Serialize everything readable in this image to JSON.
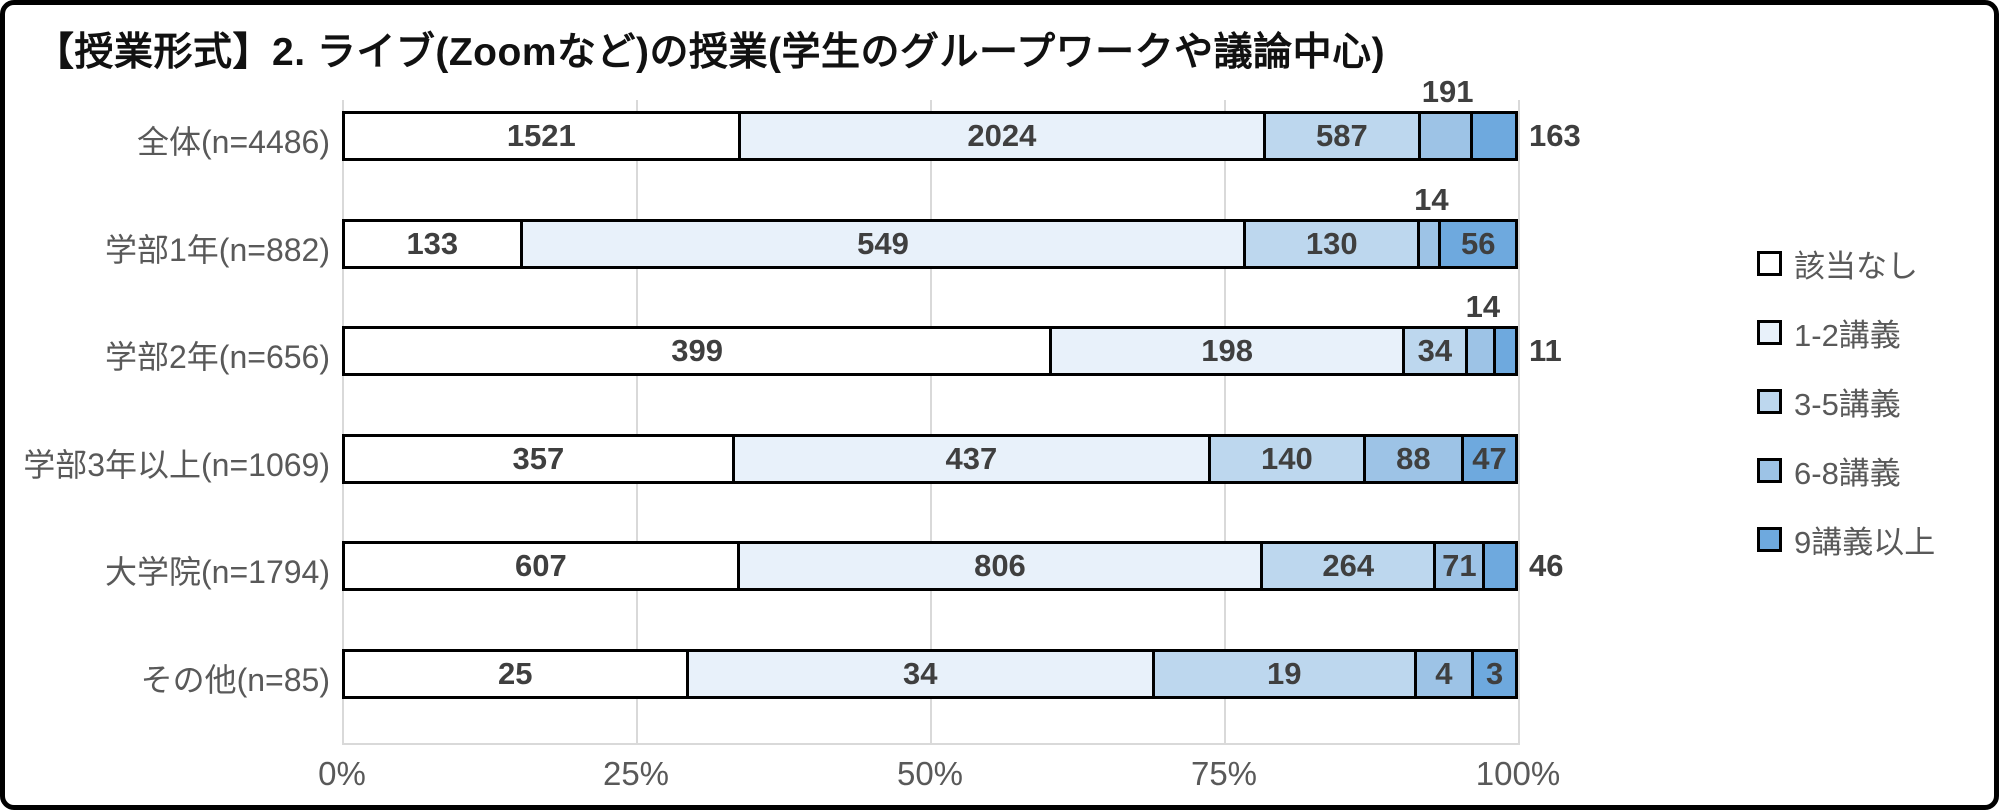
{
  "chart_data": {
    "type": "bar",
    "orientation": "horizontal",
    "stacked": "percent",
    "title": "【授業形式】2. ライブ(Zoomなど)の授業(学生のグループワークや議論中心)",
    "categories": [
      "全体(n=4486)",
      "学部1年(n=882)",
      "学部2年(n=656)",
      "学部3年以上(n=1069)",
      "大学院(n=1794)",
      "その他(n=85)"
    ],
    "series": [
      {
        "name": "該当なし",
        "color": "#ffffff",
        "values": [
          1521,
          133,
          399,
          357,
          607,
          25
        ]
      },
      {
        "name": "1-2講義",
        "color": "#e8f1fa",
        "values": [
          2024,
          549,
          198,
          437,
          806,
          34
        ]
      },
      {
        "name": "3-5講義",
        "color": "#bdd7ee",
        "values": [
          587,
          130,
          34,
          140,
          264,
          19
        ]
      },
      {
        "name": "6-8講義",
        "color": "#9dc3e6",
        "values": [
          191,
          14,
          14,
          88,
          71,
          4
        ]
      },
      {
        "name": "9講義以上",
        "color": "#6ea9de",
        "values": [
          163,
          56,
          11,
          47,
          46,
          3
        ]
      }
    ],
    "x_ticks": [
      "0%",
      "25%",
      "50%",
      "75%",
      "100%"
    ],
    "xlim": [
      0,
      1
    ],
    "grid": true,
    "legend_position": "right",
    "bar_border_color": "#000000",
    "value_label_color": "#3f3f3f",
    "axis_label_color": "#595959"
  }
}
